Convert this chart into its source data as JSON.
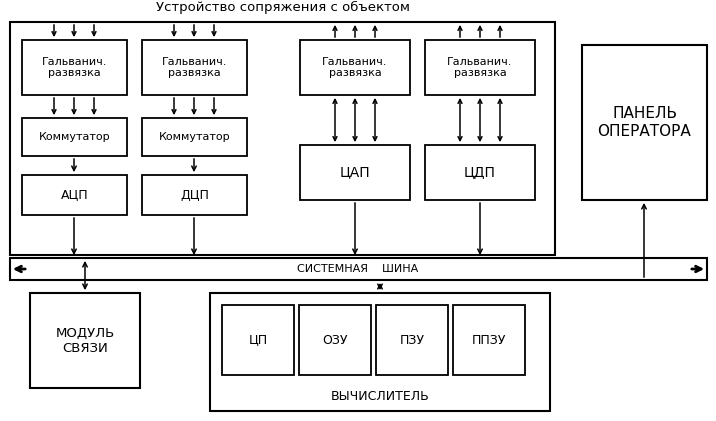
{
  "background": "#ffffff",
  "line_color": "#000000",
  "labels": {
    "galv1": "Гальванич.\nразвязка",
    "galv2": "Гальванич.\nразвязка",
    "galv3": "Гальванич.\nразвязка",
    "galv4": "Гальванич.\nразвязка",
    "comm1": "Коммутатор",
    "comm2": "Коммутатор",
    "acp": "АЦП",
    "dcp": "ДЦП",
    "cap": "ЦАП",
    "cdp": "ЦДП",
    "panel": "ПАНЕЛЬ\nОПЕРАТОРА",
    "modul": "МОДУЛЬ\nСВЯЗИ",
    "vych_label": "ВЫЧИСЛИТЕЛЬ",
    "cp": "ЦП",
    "ozu": "ОЗУ",
    "pzu": "ПЗУ",
    "ppzu": "ППЗУ",
    "shina": "СИСТЕМНАЯ    ШИНА",
    "usp_title": "Устройство сопряжения с объектом"
  },
  "fontsize_main": 9,
  "fontsize_small": 8,
  "fontsize_title": 9.5,
  "fontsize_panel": 11,
  "fontsize_vych": 9
}
